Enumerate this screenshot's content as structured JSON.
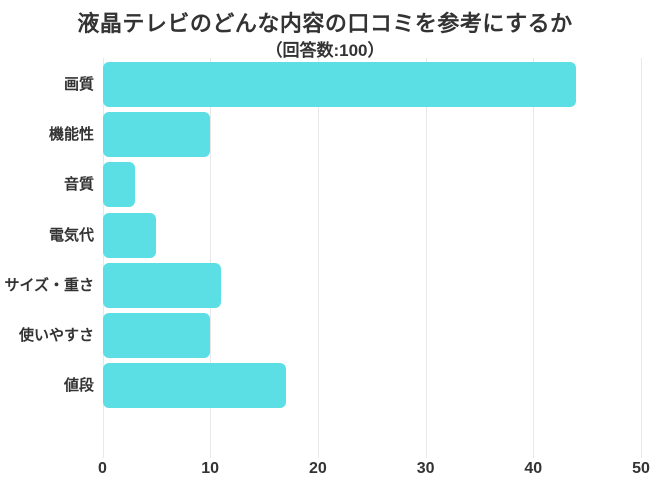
{
  "chart_data": {
    "type": "bar",
    "orientation": "horizontal",
    "title": "液晶テレビのどんな内容の口コミを参考にするか",
    "subtitle": "（回答数:100）",
    "categories": [
      "画質",
      "機能性",
      "音質",
      "電気代",
      "サイズ・重さ",
      "使いやすさ",
      "値段"
    ],
    "values": [
      44,
      10,
      3,
      5,
      11,
      10,
      17
    ],
    "xlabel": "",
    "ylabel": "",
    "xlim": [
      0,
      50
    ],
    "x_ticks": [
      0,
      10,
      20,
      30,
      40,
      50
    ],
    "grid": true,
    "legend": false,
    "colors": {
      "bar": "#5CDFE4",
      "grid": "#e8e8e8",
      "text": "#333333",
      "background": "#ffffff"
    }
  }
}
